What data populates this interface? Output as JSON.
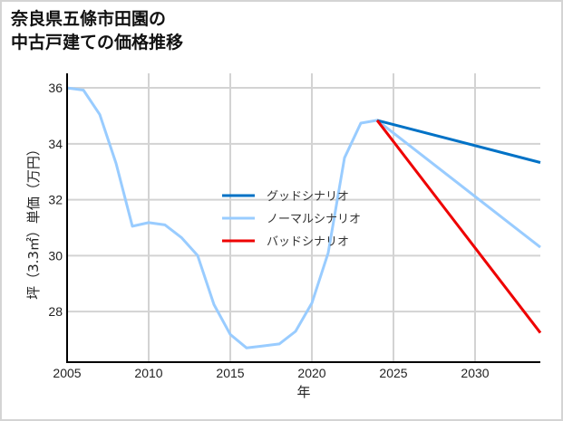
{
  "title_line1": "奈良県五條市田園の",
  "title_line2": "中古戸建ての価格推移",
  "chart_data": {
    "type": "line",
    "title": "奈良県五條市田園の中古戸建ての価格推移",
    "xlabel": "年",
    "ylabel": "坪（3.3㎡）単価（万円）",
    "xlim": [
      2005,
      2034
    ],
    "ylim": [
      26.19,
      36.52
    ],
    "xticks": [
      2005,
      2010,
      2015,
      2020,
      2025,
      2030
    ],
    "yticks": [
      28,
      30,
      32,
      34,
      36
    ],
    "grid": true,
    "legend_position": "center",
    "series": [
      {
        "name": "グッドシナリオ",
        "color": "#0072c6",
        "x": [
          2024,
          2034
        ],
        "values": [
          34.84,
          33.33
        ]
      },
      {
        "name": "ノーマルシナリオ",
        "color": "#99ccff",
        "x": [
          2005,
          2006,
          2007,
          2008,
          2009,
          2010,
          2011,
          2012,
          2013,
          2014,
          2015,
          2016,
          2017,
          2018,
          2019,
          2020,
          2021,
          2022,
          2023,
          2024,
          2034
        ],
        "values": [
          36.0,
          35.92,
          35.05,
          33.3,
          31.05,
          31.18,
          31.1,
          30.65,
          30.0,
          28.25,
          27.18,
          26.7,
          26.77,
          26.84,
          27.29,
          28.3,
          30.1,
          33.5,
          34.74,
          34.84,
          30.3
        ]
      },
      {
        "name": "バッドシナリオ",
        "color": "#ee0000",
        "x": [
          2024,
          2034
        ],
        "values": [
          34.84,
          27.24
        ]
      }
    ]
  }
}
